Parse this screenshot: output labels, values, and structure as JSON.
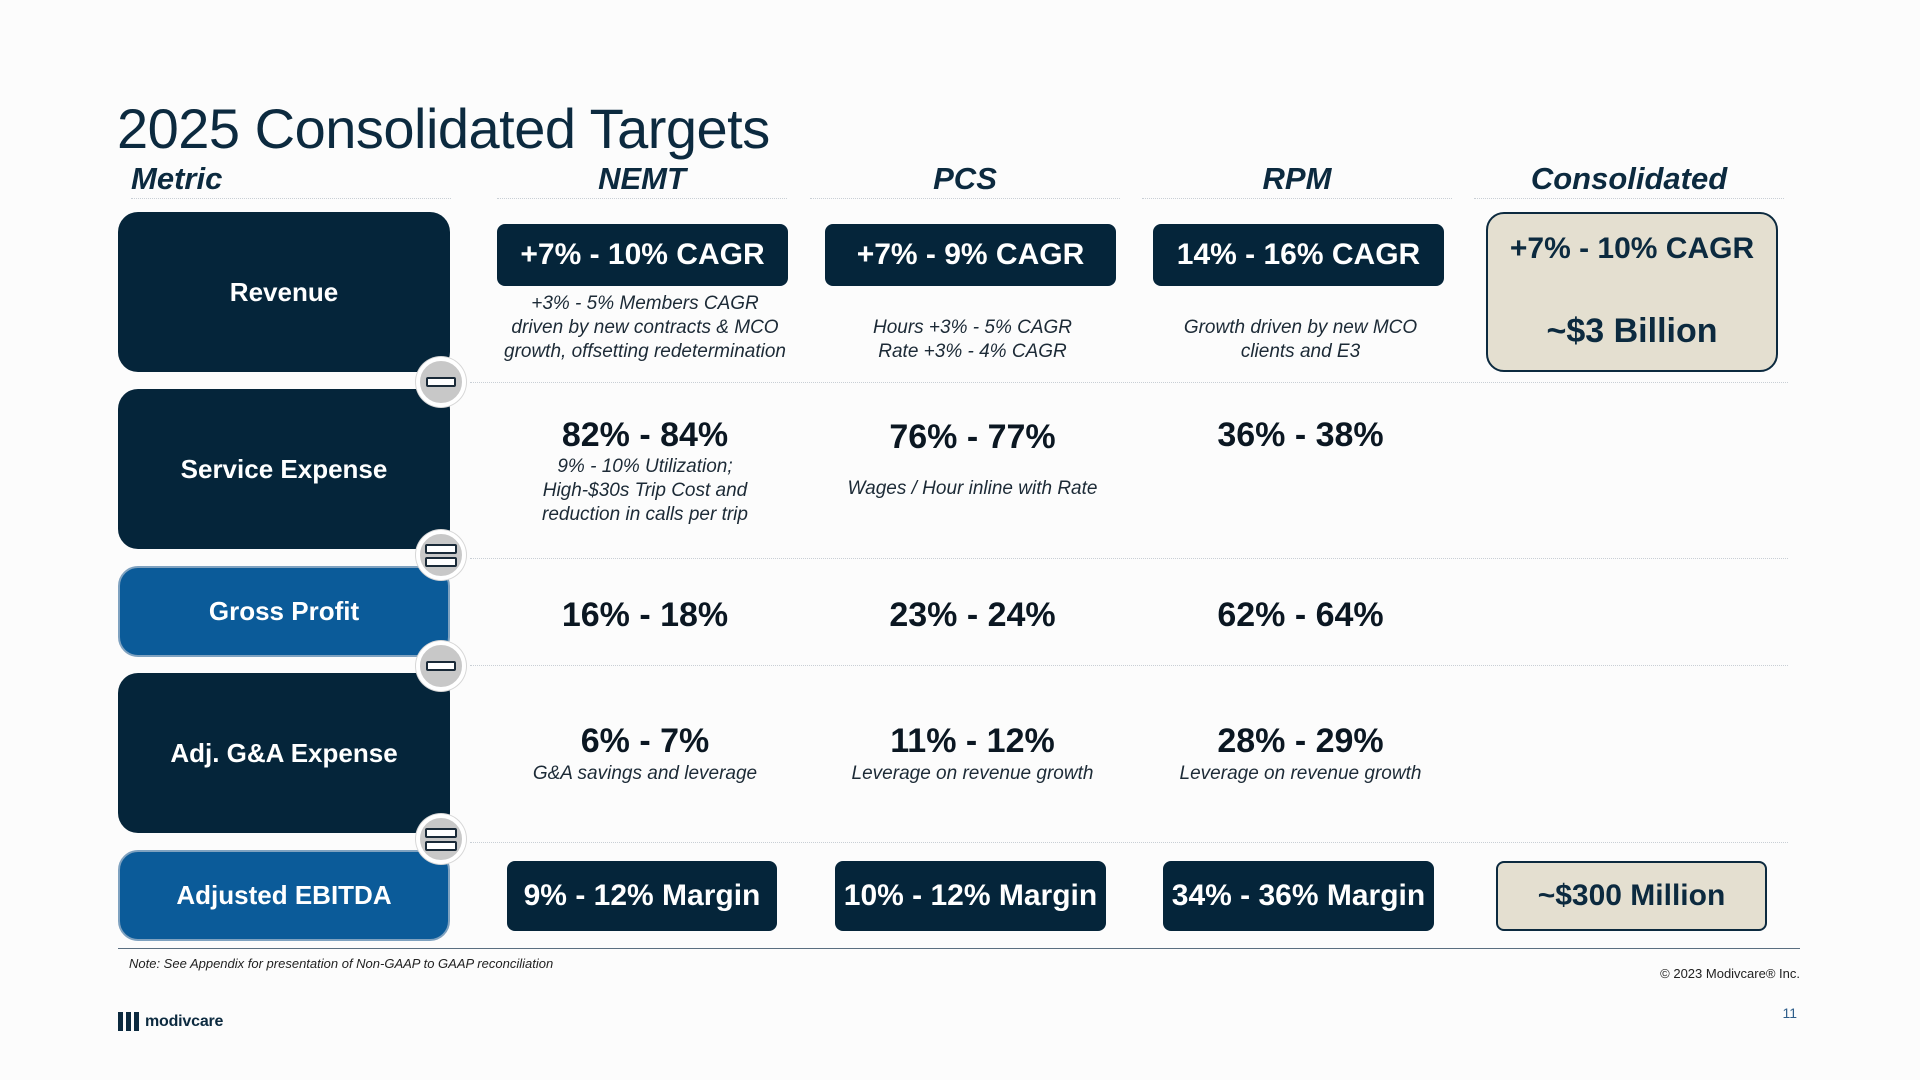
{
  "title": "2025 Consolidated Targets",
  "columns": {
    "metric": "Metric",
    "nemt": "NEMT",
    "pcs": "PCS",
    "rpm": "RPM",
    "consolidated": "Consolidated"
  },
  "rows": {
    "revenue": {
      "label": "Revenue",
      "nemt": {
        "value": "+7% - 10% CAGR",
        "note": "+3% - 5% Members CAGR\ndriven by new contracts & MCO\ngrowth, offsetting redetermination"
      },
      "pcs": {
        "value": "+7% - 9% CAGR",
        "note": "Hours +3% - 5% CAGR\nRate +3% - 4% CAGR"
      },
      "rpm": {
        "value": "14% - 16% CAGR",
        "note": "Growth driven by new MCO\nclients and E3"
      },
      "consolidated": {
        "value": "+7% - 10% CAGR",
        "sub": "~$3 Billion"
      }
    },
    "service_expense": {
      "label": "Service Expense",
      "nemt": {
        "value": "82% - 84%",
        "note": "9% - 10% Utilization;\nHigh-$30s Trip Cost and\nreduction in calls per trip"
      },
      "pcs": {
        "value": "76% - 77%",
        "note": "Wages / Hour inline with Rate"
      },
      "rpm": {
        "value": "36% - 38%"
      }
    },
    "gross_profit": {
      "label": "Gross Profit",
      "nemt": {
        "value": "16% - 18%"
      },
      "pcs": {
        "value": "23% - 24%"
      },
      "rpm": {
        "value": "62% - 64%"
      }
    },
    "ga_expense": {
      "label": "Adj. G&A Expense",
      "nemt": {
        "value": "6% - 7%",
        "note": "G&A savings and leverage"
      },
      "pcs": {
        "value": "11% - 12%",
        "note": "Leverage on revenue growth"
      },
      "rpm": {
        "value": "28% - 29%",
        "note": "Leverage on revenue growth"
      }
    },
    "ebitda": {
      "label": "Adjusted EBITDA",
      "nemt": {
        "value": "9% - 12% Margin"
      },
      "pcs": {
        "value": "10% - 12% Margin"
      },
      "rpm": {
        "value": "34% - 36% Margin"
      },
      "consolidated": {
        "value": "~$300 Million"
      }
    }
  },
  "operators": {
    "op1": "minus-icon",
    "op2": "equals-icon",
    "op3": "minus-icon",
    "op4": "equals-icon"
  },
  "footer": {
    "note": "Note: See Appendix for presentation of Non-GAAP to GAAP reconciliation",
    "copyright": "© 2023 Modivcare® Inc.",
    "page_number": "11",
    "logo_text": "modivcare"
  },
  "colors": {
    "dark_navy": "#05253a",
    "accent_blue": "#0b5b99",
    "consolidated_fill": "#e4dfd0"
  }
}
